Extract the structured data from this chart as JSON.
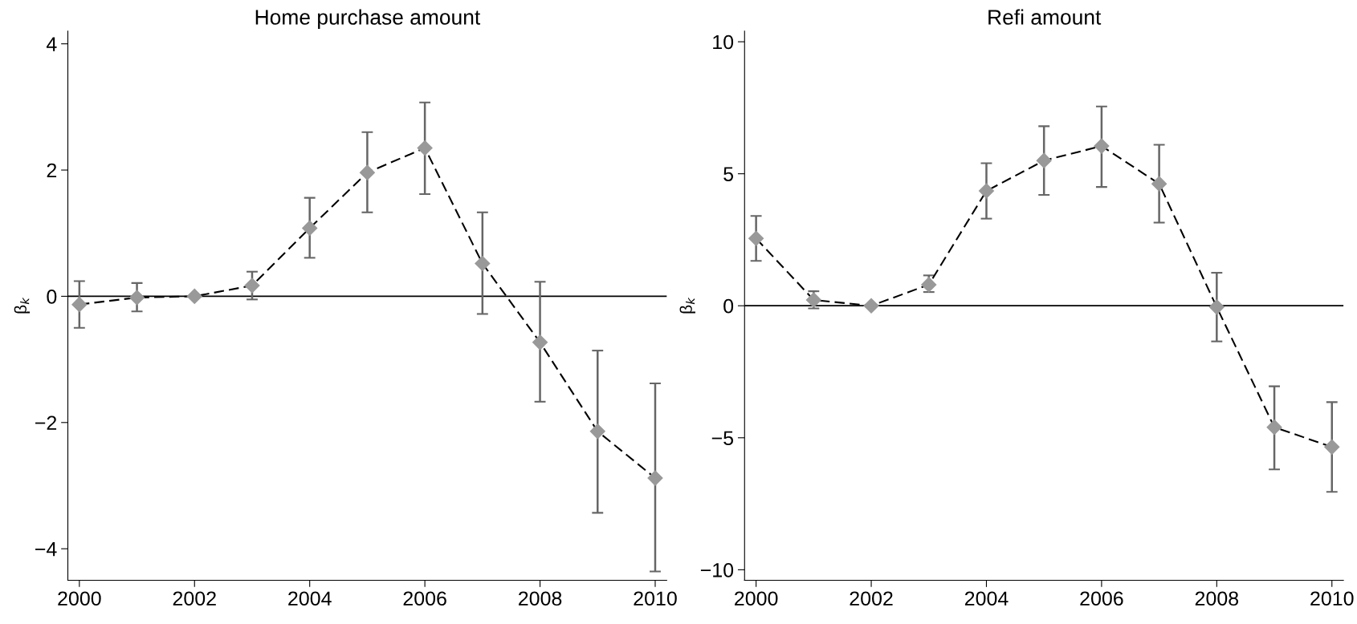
{
  "chart_data": [
    {
      "type": "line",
      "title": "Home purchase amount",
      "ylabel": "β$_{k}$",
      "x": [
        2000,
        2001,
        2002,
        2003,
        2004,
        2005,
        2006,
        2007,
        2008,
        2009,
        2010
      ],
      "series": [
        {
          "color": "#999999",
          "values": [
            -0.13,
            -0.02,
            0,
            0.17,
            1.08,
            1.96,
            2.35,
            0.52,
            -0.73,
            -2.14,
            -2.88
          ],
          "errors": [
            [
              -0.5,
              0.24
            ],
            [
              -0.24,
              0.21
            ],
            null,
            [
              -0.05,
              0.39
            ],
            [
              0.61,
              1.56
            ],
            [
              1.33,
              2.6
            ],
            [
              1.62,
              3.07
            ],
            [
              -0.28,
              1.33
            ],
            [
              -1.67,
              0.23
            ],
            [
              -3.43,
              -0.86
            ],
            [
              -4.36,
              -1.38
            ]
          ]
        }
      ],
      "marker": "diamond",
      "line_style": "dashed",
      "grid": false,
      "legend": false,
      "xlim": [
        1999.8,
        2010.2
      ],
      "xticks": [
        2000,
        2002,
        2004,
        2006,
        2008,
        2010
      ],
      "ylim": [
        -4.5,
        4.2
      ],
      "yticks": [
        {
          "value": -4,
          "label": "−4"
        },
        {
          "value": -2,
          "label": "−2"
        },
        0,
        2,
        4
      ],
      "ref_lines": [
        {
          "axis": "y",
          "value": 0,
          "color": "#000000",
          "line_style": "solid"
        }
      ]
    },
    {
      "type": "line",
      "title": "Refi amount",
      "ylabel": "β$_{k}$",
      "x": [
        2000,
        2001,
        2002,
        2003,
        2004,
        2005,
        2006,
        2007,
        2008,
        2009,
        2010
      ],
      "series": [
        {
          "color": "#999999",
          "values": [
            2.55,
            0.22,
            0,
            0.8,
            4.35,
            5.5,
            6.05,
            4.62,
            -0.05,
            -4.6,
            -5.35
          ],
          "errors": [
            [
              1.7,
              3.4
            ],
            [
              -0.1,
              0.55
            ],
            null,
            [
              0.52,
              1.15
            ],
            [
              3.3,
              5.4
            ],
            [
              4.2,
              6.8
            ],
            [
              4.5,
              7.55
            ],
            [
              3.15,
              6.1
            ],
            [
              -1.35,
              1.25
            ],
            [
              -6.2,
              -3.05
            ],
            [
              -7.05,
              -3.65
            ]
          ]
        }
      ],
      "marker": "diamond",
      "line_style": "dashed",
      "grid": false,
      "legend": false,
      "xlim": [
        1999.8,
        2010.2
      ],
      "xticks": [
        2000,
        2002,
        2004,
        2006,
        2008,
        2010
      ],
      "ylim": [
        -10.4,
        10.4
      ],
      "yticks": [
        {
          "value": -10,
          "label": "−10"
        },
        {
          "value": -5,
          "label": "−5"
        },
        0,
        5,
        10
      ],
      "ref_lines": [
        {
          "axis": "y",
          "value": 0,
          "color": "#000000",
          "line_style": "solid"
        }
      ]
    }
  ]
}
